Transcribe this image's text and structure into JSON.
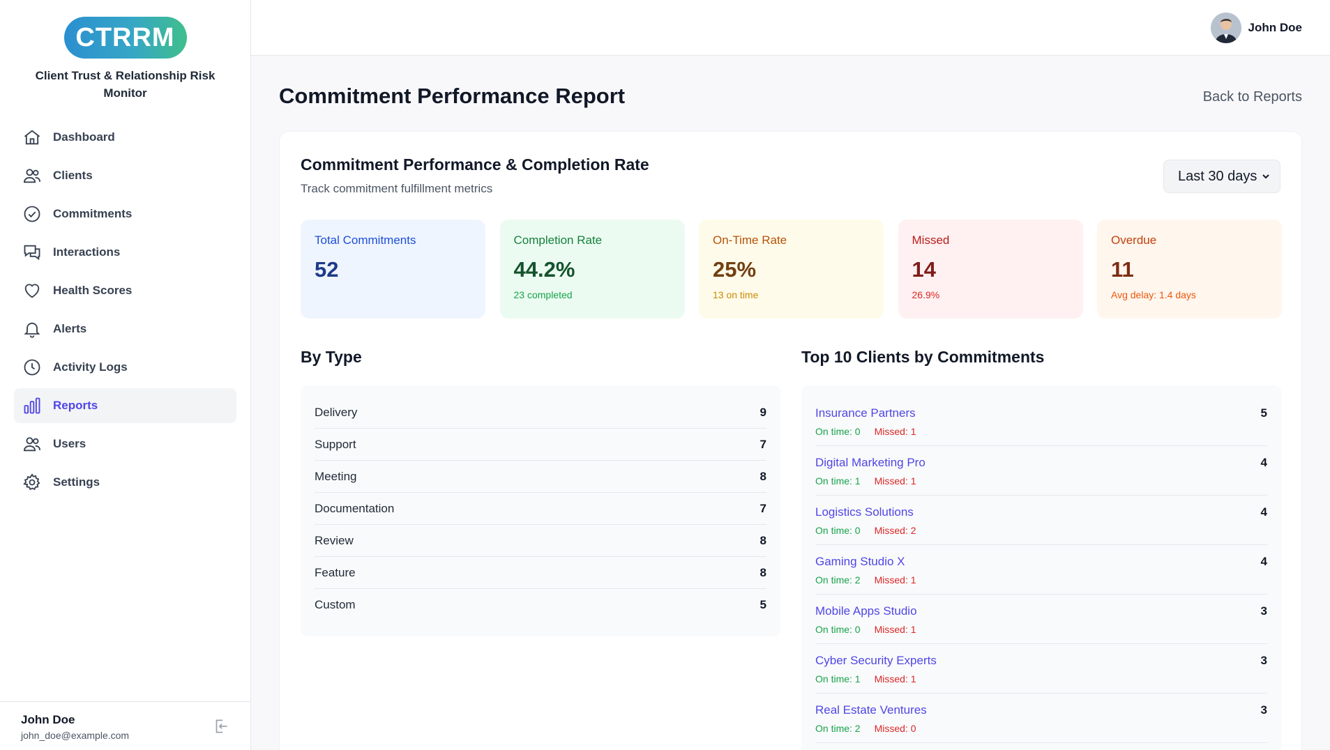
{
  "app": {
    "logo_text": "CTRRM",
    "name": "Client Trust & Relationship Risk Monitor"
  },
  "sidebar": {
    "items": [
      {
        "label": "Dashboard",
        "icon": "home-icon"
      },
      {
        "label": "Clients",
        "icon": "users-icon"
      },
      {
        "label": "Commitments",
        "icon": "check-circle-icon"
      },
      {
        "label": "Interactions",
        "icon": "chat-icon"
      },
      {
        "label": "Health Scores",
        "icon": "heart-icon"
      },
      {
        "label": "Alerts",
        "icon": "bell-icon"
      },
      {
        "label": "Activity Logs",
        "icon": "clock-icon"
      },
      {
        "label": "Reports",
        "icon": "bar-chart-icon",
        "active": true
      },
      {
        "label": "Users",
        "icon": "users-icon"
      },
      {
        "label": "Settings",
        "icon": "gear-icon"
      }
    ],
    "footer": {
      "name": "John Doe",
      "email": "john_doe@example.com"
    }
  },
  "topbar": {
    "user_name": "John Doe"
  },
  "page": {
    "title": "Commitment Performance Report",
    "back_label": "Back to Reports"
  },
  "report": {
    "title": "Commitment Performance & Completion Rate",
    "subtitle": "Track commitment fulfillment metrics",
    "range": "Last 30 days",
    "stats": [
      {
        "label": "Total Commitments",
        "value": "52",
        "note": ""
      },
      {
        "label": "Completion Rate",
        "value": "44.2%",
        "note": "23 completed"
      },
      {
        "label": "On-Time Rate",
        "value": "25%",
        "note": "13 on time"
      },
      {
        "label": "Missed",
        "value": "14",
        "note": "26.9%"
      },
      {
        "label": "Overdue",
        "value": "11",
        "note": "Avg delay: 1.4 days"
      }
    ],
    "by_type_title": "By Type",
    "by_type": [
      {
        "type": "Delivery",
        "count": "9"
      },
      {
        "type": "Support",
        "count": "7"
      },
      {
        "type": "Meeting",
        "count": "8"
      },
      {
        "type": "Documentation",
        "count": "7"
      },
      {
        "type": "Review",
        "count": "8"
      },
      {
        "type": "Feature",
        "count": "8"
      },
      {
        "type": "Custom",
        "count": "5"
      }
    ],
    "top_clients_title": "Top 10 Clients by Commitments",
    "top_clients": [
      {
        "name": "Insurance Partners",
        "count": "5",
        "on_time": "On time: 0",
        "missed": "Missed: 1"
      },
      {
        "name": "Digital Marketing Pro",
        "count": "4",
        "on_time": "On time: 1",
        "missed": "Missed: 1"
      },
      {
        "name": "Logistics Solutions",
        "count": "4",
        "on_time": "On time: 0",
        "missed": "Missed: 2"
      },
      {
        "name": "Gaming Studio X",
        "count": "4",
        "on_time": "On time: 2",
        "missed": "Missed: 1"
      },
      {
        "name": "Mobile Apps Studio",
        "count": "3",
        "on_time": "On time: 0",
        "missed": "Missed: 1"
      },
      {
        "name": "Cyber Security Experts",
        "count": "3",
        "on_time": "On time: 1",
        "missed": "Missed: 1"
      },
      {
        "name": "Real Estate Ventures",
        "count": "3",
        "on_time": "On time: 2",
        "missed": "Missed: 0"
      }
    ]
  },
  "colors": {
    "accent": "#4f46e5",
    "success": "#16a34a",
    "danger": "#dc2626"
  }
}
